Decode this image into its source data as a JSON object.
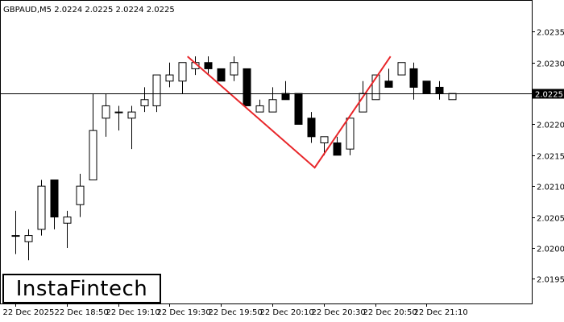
{
  "header": {
    "symbol_label": "GBPAUD,M5  2.0224 2.0225 2.0224 2.0225"
  },
  "logo": {
    "text": "InstaFintech"
  },
  "colors": {
    "background": "#ffffff",
    "bull_body": "#ffffff",
    "bear_body": "#000000",
    "pattern_line": "#e8262a",
    "price_line": "#000000",
    "price_badge": "#000000"
  },
  "chart_data": {
    "type": "candlestick",
    "instrument": "GBPAUD",
    "timeframe": "M5",
    "current_price": "2.0225",
    "ylim": [
      2.0191,
      2.024
    ],
    "y_ticks": [
      "2.0235",
      "2.0230",
      "2.0225",
      "2.0220",
      "2.0215",
      "2.0210",
      "2.0205",
      "2.0200",
      "2.0195"
    ],
    "x_ticks": [
      {
        "index": 0,
        "label": "22 Dec 2025"
      },
      {
        "index": 4,
        "label": "22 Dec 18:50"
      },
      {
        "index": 8,
        "label": "22 Dec 19:10"
      },
      {
        "index": 12,
        "label": "22 Dec 19:30"
      },
      {
        "index": 16,
        "label": "22 Dec 19:50"
      },
      {
        "index": 20,
        "label": "22 Dec 20:10"
      },
      {
        "index": 24,
        "label": "22 Dec 20:30"
      },
      {
        "index": 28,
        "label": "22 Dec 20:50"
      },
      {
        "index": 32,
        "label": "22 Dec 21:10"
      }
    ],
    "candles": [
      {
        "o": 2.0202,
        "h": 2.0206,
        "l": 2.0199,
        "c": 2.0202
      },
      {
        "o": 2.0201,
        "h": 2.0203,
        "l": 2.0198,
        "c": 2.0202
      },
      {
        "o": 2.0203,
        "h": 2.0211,
        "l": 2.0202,
        "c": 2.021
      },
      {
        "o": 2.0211,
        "h": 2.0211,
        "l": 2.0203,
        "c": 2.0205
      },
      {
        "o": 2.0204,
        "h": 2.0206,
        "l": 2.02,
        "c": 2.0205
      },
      {
        "o": 2.0207,
        "h": 2.0212,
        "l": 2.0205,
        "c": 2.021
      },
      {
        "o": 2.0211,
        "h": 2.0225,
        "l": 2.0211,
        "c": 2.0219
      },
      {
        "o": 2.0221,
        "h": 2.0225,
        "l": 2.0218,
        "c": 2.0223
      },
      {
        "o": 2.0222,
        "h": 2.0223,
        "l": 2.0219,
        "c": 2.0222
      },
      {
        "o": 2.0221,
        "h": 2.0223,
        "l": 2.0216,
        "c": 2.0222
      },
      {
        "o": 2.0223,
        "h": 2.0226,
        "l": 2.0222,
        "c": 2.0224
      },
      {
        "o": 2.0223,
        "h": 2.0228,
        "l": 2.0222,
        "c": 2.0228
      },
      {
        "o": 2.0227,
        "h": 2.023,
        "l": 2.0226,
        "c": 2.0228
      },
      {
        "o": 2.0227,
        "h": 2.023,
        "l": 2.0225,
        "c": 2.023
      },
      {
        "o": 2.0229,
        "h": 2.0231,
        "l": 2.0228,
        "c": 2.023
      },
      {
        "o": 2.023,
        "h": 2.0231,
        "l": 2.0228,
        "c": 2.0229
      },
      {
        "o": 2.0229,
        "h": 2.0229,
        "l": 2.0227,
        "c": 2.0227
      },
      {
        "o": 2.0228,
        "h": 2.0231,
        "l": 2.0227,
        "c": 2.023
      },
      {
        "o": 2.0229,
        "h": 2.0229,
        "l": 2.0223,
        "c": 2.0223
      },
      {
        "o": 2.0222,
        "h": 2.0224,
        "l": 2.0222,
        "c": 2.0223
      },
      {
        "o": 2.0222,
        "h": 2.0226,
        "l": 2.0222,
        "c": 2.0224
      },
      {
        "o": 2.0225,
        "h": 2.0227,
        "l": 2.0224,
        "c": 2.0224
      },
      {
        "o": 2.0225,
        "h": 2.0225,
        "l": 2.022,
        "c": 2.022
      },
      {
        "o": 2.0221,
        "h": 2.0222,
        "l": 2.0217,
        "c": 2.0218
      },
      {
        "o": 2.0217,
        "h": 2.0218,
        "l": 2.0215,
        "c": 2.0218
      },
      {
        "o": 2.0217,
        "h": 2.0218,
        "l": 2.0215,
        "c": 2.0215
      },
      {
        "o": 2.0216,
        "h": 2.0221,
        "l": 2.0215,
        "c": 2.0221
      },
      {
        "o": 2.0222,
        "h": 2.0227,
        "l": 2.0222,
        "c": 2.0225
      },
      {
        "o": 2.0224,
        "h": 2.0228,
        "l": 2.0224,
        "c": 2.0228
      },
      {
        "o": 2.0227,
        "h": 2.0229,
        "l": 2.0226,
        "c": 2.0226
      },
      {
        "o": 2.0228,
        "h": 2.023,
        "l": 2.0228,
        "c": 2.023
      },
      {
        "o": 2.0229,
        "h": 2.023,
        "l": 2.0224,
        "c": 2.0226
      },
      {
        "o": 2.0227,
        "h": 2.0227,
        "l": 2.0225,
        "c": 2.0225
      },
      {
        "o": 2.0226,
        "h": 2.0227,
        "l": 2.0224,
        "c": 2.0225
      },
      {
        "o": 2.0224,
        "h": 2.0225,
        "l": 2.0224,
        "c": 2.0225
      }
    ],
    "pattern_line": [
      {
        "index": 13.4,
        "price": 2.0231
      },
      {
        "index": 23.3,
        "price": 2.0213
      },
      {
        "index": 29.2,
        "price": 2.0231
      }
    ],
    "grid": false
  }
}
